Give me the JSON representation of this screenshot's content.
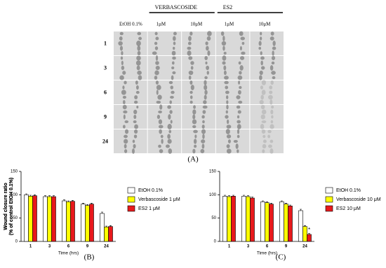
{
  "panel_a": {
    "groups": [
      "VERBASCOSIDE",
      "ES2"
    ],
    "columns": [
      "EtOH 0.1%",
      "1μM",
      "10μM",
      "1μM",
      "10μM"
    ],
    "rows": [
      "1",
      "3",
      "6",
      "9",
      "24"
    ],
    "label": "(A)"
  },
  "chart_data": [
    {
      "type": "bar",
      "label": "(B)",
      "ylabel": [
        "Wound closure ratio",
        "(% of control EtOH 0.1%)"
      ],
      "xlabel": "Time (hrs)",
      "categories": [
        "1",
        "3",
        "6",
        "9",
        "24"
      ],
      "ylim": [
        0,
        150
      ],
      "yticks": [
        0,
        50,
        100,
        150
      ],
      "series": [
        {
          "name": "EtOH 0.1%",
          "color": "#ffffff",
          "values": [
            100,
            96,
            87,
            80,
            60
          ],
          "errors": [
            2,
            2,
            2,
            2,
            3
          ]
        },
        {
          "name": "Verbascoside 1 μM",
          "color": "#ffff00",
          "values": [
            97,
            96,
            85,
            77,
            31
          ],
          "errors": [
            2,
            2,
            2,
            2,
            2
          ]
        },
        {
          "name": "ES2 1 μM",
          "color": "#e8191c",
          "values": [
            98,
            96,
            86,
            80,
            32
          ],
          "errors": [
            2,
            2,
            2,
            2,
            2
          ]
        }
      ]
    },
    {
      "type": "bar",
      "label": "(C)",
      "ylabel": [
        "Wound closure ratio",
        "(% of control EtOH 0.1%)"
      ],
      "xlabel": "Time (hrs)",
      "categories": [
        "1",
        "3",
        "6",
        "9",
        "24"
      ],
      "ylim": [
        0,
        150
      ],
      "yticks": [
        0,
        50,
        100,
        150
      ],
      "annotation": "*",
      "series": [
        {
          "name": "EtOH 0.1%",
          "color": "#ffffff",
          "values": [
            97,
            97,
            85,
            85,
            66
          ],
          "errors": [
            2,
            2,
            2,
            2,
            3
          ]
        },
        {
          "name": "Verbascoside 10 μM",
          "color": "#ffff00",
          "values": [
            96,
            96,
            83,
            80,
            32
          ],
          "errors": [
            2,
            2,
            2,
            2,
            2
          ]
        },
        {
          "name": "ES2 10 μM",
          "color": "#e8191c",
          "values": [
            97,
            93,
            80,
            76,
            15
          ],
          "errors": [
            2,
            2,
            2,
            2,
            2
          ]
        }
      ]
    }
  ]
}
